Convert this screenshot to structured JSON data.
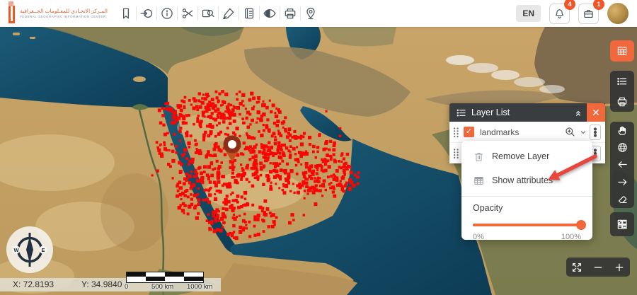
{
  "header": {
    "logo": {
      "title_ar": "المـركز الاتحـادي للمعـلومات الجــغرافية",
      "title_en": "FEDERAL GEOGRAPHIC INFORMATION CENTER"
    },
    "tools": [
      "bookmark",
      "sign-in",
      "info",
      "measure-scissors",
      "search-area",
      "draw-pen",
      "attribute-table",
      "visibility-eye",
      "print",
      "locate-pin"
    ],
    "language": "EN",
    "bell_badge": "4",
    "case_badge": "1"
  },
  "layer_list": {
    "title": "Layer List",
    "rows": [
      {
        "label": "landmarks",
        "checked": true
      },
      {
        "label": "",
        "checked": false
      }
    ],
    "context_menu": {
      "items": [
        {
          "icon": "trash-icon",
          "label": "Remove Layer"
        },
        {
          "icon": "table-icon",
          "label": "Show attributes"
        }
      ],
      "opacity": {
        "label": "Opacity",
        "min_label": "0%",
        "max_label": "100%",
        "value_percent": 100
      }
    }
  },
  "side_toolbar": {
    "buttons": [
      "attribute-table",
      "layer-list",
      "print",
      "pan-hand",
      "globe",
      "previous-extent",
      "next-extent",
      "erase",
      "basemap-gallery"
    ]
  },
  "zoom_controls": {
    "buttons": [
      "fullscreen",
      "zoom-out",
      "zoom-in"
    ]
  },
  "statusbar": {
    "x": "X: 72.8193",
    "y": "Y: 34.9840"
  },
  "scalebar": {
    "labels": [
      "0",
      "500 km",
      "1000 km"
    ]
  },
  "compass": {
    "w": "W",
    "e": "E"
  },
  "landmarks_layer": {
    "color": "#fa0505",
    "dot_count": 960,
    "region": "arabian-peninsula"
  },
  "colors": {
    "accent": "#f1683c",
    "badge": "#f1562b",
    "panel_dark": "#3a3d40",
    "sea": "#15506b",
    "land": "#c4a066",
    "arrow": "#e8473f"
  }
}
